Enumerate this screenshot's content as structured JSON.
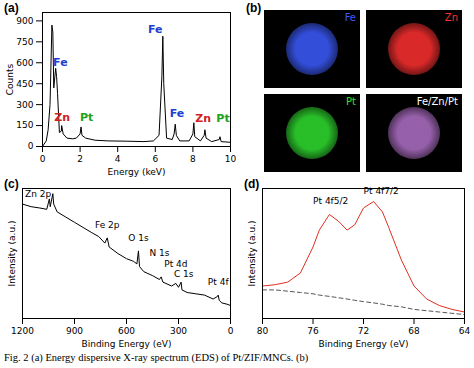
{
  "chart_data": [
    {
      "type": "line",
      "title": "(a)",
      "xlabel": "Energy (keV)",
      "ylabel": "Counts",
      "xlim": [
        0,
        10
      ],
      "xticks": [
        0,
        2,
        4,
        6,
        8,
        10
      ],
      "ylim": [
        0,
        960
      ],
      "yticks": [
        0,
        150,
        300,
        450,
        600,
        750,
        900
      ],
      "x": [
        0,
        0.2,
        0.3,
        0.4,
        0.5,
        0.55,
        0.6,
        0.7,
        0.75,
        0.8,
        0.9,
        1.0,
        1.02,
        1.1,
        1.3,
        1.6,
        1.8,
        2.0,
        2.05,
        2.1,
        2.3,
        2.8,
        3.5,
        4.5,
        5.4,
        5.9,
        6.2,
        6.35,
        6.4,
        6.45,
        6.6,
        6.9,
        7.0,
        7.06,
        7.12,
        7.3,
        7.8,
        8.0,
        8.05,
        8.1,
        8.4,
        8.6,
        8.64,
        8.7,
        9.0,
        9.4,
        9.44,
        9.5,
        10
      ],
      "series": [
        {
          "color": "#000000",
          "values": [
            0,
            40,
            120,
            300,
            870,
            820,
            420,
            560,
            500,
            380,
            100,
            110,
            150,
            90,
            60,
            55,
            60,
            90,
            140,
            80,
            60,
            45,
            40,
            38,
            35,
            40,
            80,
            500,
            790,
            450,
            60,
            50,
            90,
            160,
            80,
            40,
            40,
            90,
            170,
            70,
            40,
            80,
            120,
            60,
            35,
            50,
            70,
            35,
            30
          ]
        }
      ],
      "annotations": [
        {
          "text": "Fe",
          "x": 0.95,
          "y": 600,
          "color": "#2040d0"
        },
        {
          "text": "Fe",
          "x": 6.0,
          "y": 840,
          "color": "#2040d0"
        },
        {
          "text": "Fe",
          "x": 7.15,
          "y": 240,
          "color": "#2040d0"
        },
        {
          "text": "Zn",
          "x": 1.05,
          "y": 210,
          "color": "#d02020"
        },
        {
          "text": "Pt",
          "x": 2.35,
          "y": 210,
          "color": "#20a020"
        },
        {
          "text": "Zn",
          "x": 8.55,
          "y": 200,
          "color": "#d02020"
        },
        {
          "text": "Pt",
          "x": 9.6,
          "y": 200,
          "color": "#20a020"
        }
      ]
    },
    {
      "type": "map",
      "title": "(b)",
      "panels": [
        {
          "label": "Fe",
          "color": "#3c5cff"
        },
        {
          "label": "Zn",
          "color": "#ff3030"
        },
        {
          "label": "Pt",
          "color": "#30e030"
        },
        {
          "label": "Fe/Zn/Pt",
          "color": "#b070c8"
        }
      ]
    },
    {
      "type": "line",
      "title": "(c)",
      "xlabel": "Binding Energy (eV)",
      "ylabel": "Intensity (a.u.)",
      "tick_labels": "x",
      "xlim": [
        1200,
        0
      ],
      "xticks": [
        1200,
        900,
        600,
        300,
        0
      ],
      "ylim": [
        0,
        100
      ],
      "x": [
        1200,
        1150,
        1100,
        1060,
        1045,
        1040,
        1025,
        1020,
        1000,
        950,
        900,
        850,
        800,
        760,
        725,
        711,
        700,
        650,
        600,
        560,
        540,
        531,
        525,
        500,
        450,
        410,
        400,
        390,
        340,
        315,
        300,
        285,
        280,
        250,
        200,
        150,
        100,
        75,
        71,
        65,
        50,
        20,
        0
      ],
      "series": [
        {
          "color": "#000000",
          "values": [
            88,
            86,
            85,
            84,
            92,
            86,
            96,
            88,
            82,
            78,
            74,
            70,
            66,
            63,
            58,
            62,
            55,
            50,
            46,
            44,
            42,
            52,
            40,
            36,
            33,
            30,
            32,
            28,
            25,
            27,
            24,
            28,
            22,
            20,
            19,
            18,
            15,
            17,
            18,
            14,
            12,
            11,
            10
          ]
        }
      ],
      "annotations": [
        {
          "text": "Zn 2p",
          "x": 1110,
          "y": 96
        },
        {
          "text": "Fe 2p",
          "x": 711,
          "y": 72
        },
        {
          "text": "O 1s",
          "x": 531,
          "y": 62
        },
        {
          "text": "N 1s",
          "x": 410,
          "y": 50
        },
        {
          "text": "Pt 4d",
          "x": 315,
          "y": 42
        },
        {
          "text": "C 1s",
          "x": 270,
          "y": 34
        },
        {
          "text": "Pt 4f",
          "x": 71,
          "y": 28
        }
      ]
    },
    {
      "type": "line",
      "title": "(d)",
      "xlabel": "Binding Energy (eV)",
      "ylabel": "Intensity (a.u.)",
      "tick_labels": "x",
      "xlim": [
        80,
        64
      ],
      "xticks": [
        80,
        76,
        72,
        68,
        64
      ],
      "ylim": [
        0,
        100
      ],
      "x": [
        80,
        79,
        78,
        77,
        76,
        75.5,
        74.7,
        74,
        73.3,
        72.7,
        72,
        71.2,
        70.5,
        70,
        69,
        68,
        67,
        66,
        65,
        64
      ],
      "series": [
        {
          "color": "#e03020",
          "line_style": "solid",
          "values": [
            25,
            26,
            28,
            35,
            55,
            68,
            80,
            75,
            68,
            72,
            85,
            90,
            82,
            70,
            45,
            25,
            15,
            10,
            7,
            5
          ]
        },
        {
          "color": "#555555",
          "line_style": "dashed",
          "values": [
            22,
            22,
            21,
            20,
            19,
            18,
            17,
            16,
            15,
            14,
            13,
            12,
            11,
            10,
            9,
            7,
            6,
            5,
            4,
            3
          ]
        }
      ],
      "annotations": [
        {
          "text": "Pt 4f5/2",
          "x": 74.6,
          "y": 90
        },
        {
          "text": "Pt 4f7/2",
          "x": 70.6,
          "y": 98
        }
      ]
    }
  ],
  "caption": "Fig. 2 (a) Energy dispersive X-ray spectrum (EDS) of Pt/ZIF/MNCs. (b)"
}
